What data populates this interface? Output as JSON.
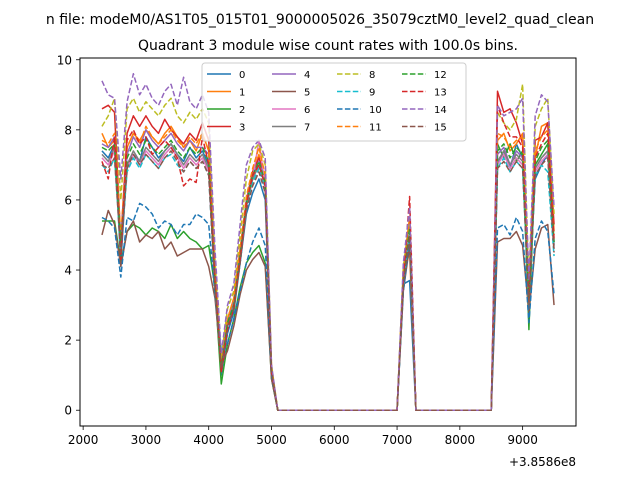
{
  "figure": {
    "suptitle": "n file: modeM0/AS1T05_015T01_9000005026_35079cztM0_level2_quad_clean",
    "offset_label": "+3.8586e8"
  },
  "chart_data": {
    "type": "line",
    "title": "Quadrant 3 module wise count rates with 100.0s bins.",
    "xlabel": "",
    "ylabel": "",
    "xlim": [
      1950,
      9850
    ],
    "ylim": [
      -0.45,
      10.05
    ],
    "x_ticks": [
      2000,
      3000,
      4000,
      5000,
      6000,
      7000,
      8000,
      9000
    ],
    "y_ticks": [
      0,
      2,
      4,
      6,
      8,
      10
    ],
    "grid": false,
    "legend_placement": "top-center",
    "legend_columns": 4,
    "x": [
      2300,
      2400,
      2500,
      2600,
      2700,
      2800,
      2900,
      3000,
      3100,
      3200,
      3300,
      3400,
      3500,
      3600,
      3700,
      3800,
      3900,
      4000,
      4100,
      4200,
      4300,
      4400,
      4500,
      4600,
      4700,
      4800,
      4900,
      5000,
      5100,
      5200,
      5300,
      5400,
      5500,
      5600,
      5700,
      5800,
      5900,
      6000,
      6100,
      6200,
      6300,
      6400,
      6500,
      6600,
      6700,
      6800,
      6900,
      7000,
      7100,
      7200,
      7300,
      7400,
      7500,
      7600,
      7700,
      7800,
      7900,
      8000,
      8100,
      8200,
      8300,
      8400,
      8500,
      8600,
      8700,
      8800,
      8900,
      9000,
      9100,
      9200,
      9300,
      9400,
      9500
    ],
    "series": [
      {
        "name": "0",
        "color": "#1f77b4",
        "style": "solid",
        "values": [
          7.4,
          7.2,
          7.6,
          4.2,
          7.0,
          7.3,
          7.1,
          7.8,
          7.5,
          7.2,
          7.4,
          7.6,
          7.3,
          7.1,
          7.5,
          7.2,
          7.4,
          7.0,
          3.5,
          1.0,
          2.2,
          2.8,
          4.2,
          5.6,
          6.2,
          6.6,
          6.0,
          1.0,
          0,
          0,
          0,
          0,
          0,
          0,
          0,
          0,
          0,
          0,
          0,
          0,
          0,
          0,
          0,
          0,
          0,
          0,
          0,
          0,
          3.6,
          3.7,
          0,
          0,
          0,
          0,
          0,
          0,
          0,
          0,
          0,
          0,
          0,
          0,
          0,
          7.0,
          7.4,
          6.9,
          7.6,
          7.2,
          3.2,
          6.6,
          7.0,
          7.3,
          4.8
        ]
      },
      {
        "name": "1",
        "color": "#ff7f0e",
        "style": "solid",
        "values": [
          7.9,
          7.5,
          7.7,
          4.5,
          7.5,
          7.9,
          7.7,
          8.0,
          7.8,
          7.6,
          7.9,
          8.1,
          7.8,
          7.5,
          7.7,
          7.4,
          7.9,
          7.4,
          3.8,
          1.3,
          2.6,
          3.2,
          4.6,
          6.0,
          6.8,
          7.3,
          6.4,
          1.2,
          0,
          0,
          0,
          0,
          0,
          0,
          0,
          0,
          0,
          0,
          0,
          0,
          0,
          0,
          0,
          0,
          0,
          0,
          0,
          0,
          3.9,
          4.5,
          0,
          0,
          0,
          0,
          0,
          0,
          0,
          0,
          0,
          0,
          0,
          0,
          0,
          7.7,
          7.9,
          7.4,
          7.6,
          7.9,
          3.5,
          7.2,
          8.1,
          8.2,
          5.1
        ]
      },
      {
        "name": "2",
        "color": "#2ca02c",
        "style": "solid",
        "values": [
          5.4,
          5.4,
          5.4,
          4.2,
          5.1,
          5.3,
          5.2,
          5.0,
          5.2,
          5.1,
          4.9,
          5.3,
          4.9,
          5.1,
          4.9,
          4.8,
          4.6,
          4.7,
          3.5,
          0.75,
          1.9,
          2.6,
          3.5,
          4.2,
          4.5,
          4.7,
          4.2,
          0.9,
          0,
          0,
          0,
          0,
          0,
          0,
          0,
          0,
          0,
          0,
          0,
          0,
          0,
          0,
          0,
          0,
          0,
          0,
          0,
          0,
          3.7,
          5.1,
          0,
          0,
          0,
          0,
          0,
          0,
          0,
          0,
          0,
          0,
          0,
          0,
          0,
          7.6,
          7.2,
          7.6,
          7.1,
          7.4,
          2.3,
          7.0,
          7.3,
          7.6,
          4.6
        ]
      },
      {
        "name": "3",
        "color": "#d62728",
        "style": "solid",
        "values": [
          8.6,
          8.7,
          8.5,
          4.8,
          7.9,
          8.4,
          8.1,
          8.4,
          8.1,
          7.9,
          8.3,
          8.0,
          7.8,
          7.6,
          7.9,
          7.7,
          8.2,
          7.7,
          4.0,
          1.1,
          2.4,
          3.0,
          4.4,
          6.0,
          6.8,
          7.2,
          6.6,
          1.1,
          0,
          0,
          0,
          0,
          0,
          0,
          0,
          0,
          0,
          0,
          0,
          0,
          0,
          0,
          0,
          0,
          0,
          0,
          0,
          0,
          3.8,
          5.3,
          0,
          0,
          0,
          0,
          0,
          0,
          0,
          0,
          0,
          0,
          0,
          0,
          0,
          9.1,
          8.5,
          8.6,
          8.2,
          7.6,
          3.1,
          7.7,
          7.8,
          8.2,
          5.3
        ]
      },
      {
        "name": "4",
        "color": "#9467bd",
        "style": "solid",
        "values": [
          7.6,
          7.5,
          7.8,
          4.8,
          7.3,
          7.8,
          7.5,
          8.0,
          7.7,
          7.5,
          7.7,
          7.9,
          7.6,
          7.4,
          7.7,
          7.5,
          7.5,
          7.3,
          3.7,
          1.2,
          2.5,
          3.1,
          4.5,
          6.0,
          6.7,
          7.1,
          6.5,
          1.1,
          0,
          0,
          0,
          0,
          0,
          0,
          0,
          0,
          0,
          0,
          0,
          0,
          0,
          0,
          0,
          0,
          0,
          0,
          0,
          0,
          3.8,
          4.9,
          0,
          0,
          0,
          0,
          0,
          0,
          0,
          0,
          0,
          0,
          0,
          0,
          0,
          7.3,
          7.5,
          7.0,
          7.4,
          7.2,
          3.0,
          6.9,
          7.2,
          7.4,
          4.7
        ]
      },
      {
        "name": "5",
        "color": "#8c564b",
        "style": "solid",
        "values": [
          5.0,
          5.7,
          5.3,
          4.1,
          5.1,
          5.4,
          4.8,
          5.0,
          4.9,
          5.1,
          4.6,
          4.8,
          4.4,
          4.5,
          4.6,
          4.6,
          4.6,
          4.1,
          3.2,
          1.3,
          1.7,
          2.4,
          3.3,
          4.0,
          4.3,
          4.5,
          4.1,
          0.9,
          0,
          0,
          0,
          0,
          0,
          0,
          0,
          0,
          0,
          0,
          0,
          0,
          0,
          0,
          0,
          0,
          0,
          0,
          0,
          0,
          3.4,
          4.7,
          0,
          0,
          0,
          0,
          0,
          0,
          0,
          0,
          0,
          0,
          0,
          0,
          0,
          4.8,
          4.9,
          4.9,
          5.1,
          4.7,
          2.8,
          4.6,
          5.2,
          5.3,
          3.0
        ]
      },
      {
        "name": "6",
        "color": "#e377c2",
        "style": "solid",
        "values": [
          7.2,
          7.0,
          7.4,
          4.6,
          6.9,
          7.3,
          7.0,
          7.4,
          7.2,
          7.0,
          7.3,
          7.5,
          7.2,
          6.9,
          7.2,
          7.0,
          7.2,
          6.8,
          3.5,
          1.2,
          2.4,
          3.0,
          4.3,
          5.8,
          6.6,
          7.7,
          6.4,
          1.1,
          0,
          0,
          0,
          0,
          0,
          0,
          0,
          0,
          0,
          0,
          0,
          0,
          0,
          0,
          0,
          0,
          0,
          0,
          0,
          0,
          3.6,
          5.4,
          0,
          0,
          0,
          0,
          0,
          0,
          0,
          0,
          0,
          0,
          0,
          0,
          0,
          7.0,
          7.3,
          6.9,
          7.2,
          7.0,
          3.0,
          6.8,
          7.1,
          7.3,
          4.6
        ]
      },
      {
        "name": "7",
        "color": "#7f7f7f",
        "style": "solid",
        "values": [
          7.3,
          7.1,
          7.5,
          4.7,
          7.0,
          7.4,
          7.1,
          7.5,
          7.3,
          7.1,
          7.4,
          7.6,
          7.3,
          7.0,
          7.3,
          7.1,
          7.3,
          6.9,
          3.6,
          1.2,
          2.4,
          3.0,
          4.3,
          5.8,
          6.6,
          7.0,
          6.4,
          1.1,
          0,
          0,
          0,
          0,
          0,
          0,
          0,
          0,
          0,
          0,
          0,
          0,
          0,
          0,
          0,
          0,
          0,
          0,
          0,
          0,
          3.7,
          5.0,
          0,
          0,
          0,
          0,
          0,
          0,
          0,
          0,
          0,
          0,
          0,
          0,
          0,
          7.1,
          7.4,
          7.0,
          7.3,
          7.1,
          3.1,
          6.9,
          7.2,
          7.4,
          4.7
        ]
      },
      {
        "name": "8",
        "color": "#bcbd22",
        "style": "dashed",
        "values": [
          8.1,
          8.4,
          8.9,
          6.0,
          8.6,
          8.9,
          8.5,
          8.8,
          8.6,
          8.4,
          8.7,
          8.9,
          8.4,
          8.2,
          8.5,
          8.3,
          8.6,
          8.2,
          4.3,
          1.5,
          2.9,
          3.4,
          5.0,
          6.6,
          7.4,
          7.6,
          7.0,
          1.3,
          0,
          0,
          0,
          0,
          0,
          0,
          0,
          0,
          0,
          0,
          0,
          0,
          0,
          0,
          0,
          0,
          0,
          0,
          0,
          0,
          4.1,
          5.5,
          0,
          0,
          0,
          0,
          0,
          0,
          0,
          0,
          0,
          0,
          0,
          0,
          0,
          8.5,
          8.2,
          8.0,
          8.3,
          9.3,
          3.6,
          8.1,
          8.6,
          8.9,
          5.6
        ]
      },
      {
        "name": "9",
        "color": "#17becf",
        "style": "dashed",
        "values": [
          7.0,
          6.8,
          7.2,
          4.5,
          6.8,
          7.2,
          6.9,
          7.3,
          7.1,
          6.9,
          7.2,
          7.3,
          7.0,
          6.8,
          7.1,
          6.9,
          7.1,
          6.7,
          3.4,
          1.2,
          2.4,
          2.9,
          4.2,
          5.7,
          6.5,
          6.9,
          6.3,
          1.1,
          0,
          0,
          0,
          0,
          0,
          0,
          0,
          0,
          0,
          0,
          0,
          0,
          0,
          0,
          0,
          0,
          0,
          0,
          0,
          0,
          3.5,
          5.2,
          0,
          0,
          0,
          0,
          0,
          0,
          0,
          0,
          0,
          0,
          0,
          0,
          0,
          6.9,
          7.2,
          6.8,
          7.1,
          6.9,
          3.0,
          6.7,
          7.0,
          6.8,
          4.4
        ]
      },
      {
        "name": "10",
        "color": "#1f77b4",
        "style": "dashed",
        "values": [
          5.5,
          5.4,
          5.2,
          3.8,
          5.5,
          5.4,
          5.9,
          5.8,
          5.6,
          5.2,
          5.4,
          5.3,
          5.0,
          5.3,
          5.3,
          5.6,
          5.5,
          5.3,
          3.3,
          1.7,
          1.9,
          2.6,
          3.4,
          4.2,
          4.8,
          5.2,
          4.7,
          1.0,
          0,
          0,
          0,
          0,
          0,
          0,
          0,
          0,
          0,
          0,
          0,
          0,
          0,
          0,
          0,
          0,
          0,
          0,
          0,
          0,
          3.4,
          4.9,
          0,
          0,
          0,
          0,
          0,
          0,
          0,
          0,
          0,
          0,
          0,
          0,
          0,
          5.2,
          5.3,
          5.0,
          5.5,
          5.1,
          2.5,
          4.9,
          5.4,
          5.1,
          3.3
        ]
      },
      {
        "name": "11",
        "color": "#ff7f0e",
        "style": "dashed",
        "values": [
          7.7,
          7.6,
          7.9,
          5.0,
          7.5,
          7.9,
          7.6,
          8.1,
          7.8,
          7.6,
          7.8,
          8.0,
          7.7,
          7.5,
          7.8,
          7.6,
          7.9,
          7.4,
          3.8,
          1.3,
          2.6,
          3.2,
          4.6,
          6.1,
          6.9,
          7.5,
          6.7,
          1.2,
          0,
          0,
          0,
          0,
          0,
          0,
          0,
          0,
          0,
          0,
          0,
          0,
          0,
          0,
          0,
          0,
          0,
          0,
          0,
          0,
          3.9,
          5.5,
          0,
          0,
          0,
          0,
          0,
          0,
          0,
          0,
          0,
          0,
          0,
          0,
          0,
          7.9,
          7.8,
          7.5,
          7.7,
          7.8,
          3.3,
          7.4,
          7.8,
          8.0,
          5.0
        ]
      },
      {
        "name": "12",
        "color": "#2ca02c",
        "style": "dashed",
        "values": [
          7.5,
          7.4,
          7.6,
          4.7,
          7.2,
          7.6,
          7.3,
          7.7,
          7.5,
          7.3,
          7.5,
          7.7,
          7.4,
          7.2,
          7.5,
          7.3,
          7.5,
          7.1,
          3.6,
          1.2,
          2.5,
          3.0,
          4.4,
          5.9,
          6.7,
          7.1,
          6.5,
          1.1,
          0,
          0,
          0,
          0,
          0,
          0,
          0,
          0,
          0,
          0,
          0,
          0,
          0,
          0,
          0,
          0,
          0,
          0,
          0,
          0,
          3.7,
          5.2,
          0,
          0,
          0,
          0,
          0,
          0,
          0,
          0,
          0,
          0,
          0,
          0,
          0,
          7.4,
          7.6,
          7.2,
          7.5,
          7.3,
          3.1,
          7.1,
          7.5,
          7.7,
          4.8
        ]
      },
      {
        "name": "13",
        "color": "#d62728",
        "style": "dashed",
        "values": [
          7.1,
          6.6,
          7.8,
          4.3,
          7.7,
          8.0,
          7.6,
          7.8,
          7.3,
          7.5,
          7.7,
          7.5,
          7.2,
          6.4,
          6.6,
          6.5,
          7.8,
          7.0,
          3.7,
          1.1,
          2.3,
          2.9,
          4.3,
          5.9,
          6.7,
          7.0,
          6.4,
          1.1,
          0,
          0,
          0,
          0,
          0,
          0,
          0,
          0,
          0,
          0,
          0,
          0,
          0,
          0,
          0,
          0,
          0,
          0,
          0,
          0,
          3.7,
          6.1,
          0,
          0,
          0,
          0,
          0,
          0,
          0,
          0,
          0,
          0,
          0,
          0,
          0,
          8.7,
          8.2,
          7.8,
          7.8,
          7.5,
          3.1,
          7.2,
          7.6,
          7.9,
          4.9
        ]
      },
      {
        "name": "14",
        "color": "#9467bd",
        "style": "dashed",
        "values": [
          9.4,
          9.0,
          8.9,
          6.6,
          8.8,
          9.6,
          9.0,
          9.3,
          8.9,
          8.7,
          9.1,
          9.3,
          8.7,
          9.5,
          8.8,
          8.6,
          9.0,
          8.5,
          4.6,
          1.6,
          3.0,
          3.6,
          5.3,
          7.0,
          7.5,
          7.7,
          7.2,
          1.3,
          0,
          0,
          0,
          0,
          0,
          0,
          0,
          0,
          0,
          0,
          0,
          0,
          0,
          0,
          0,
          0,
          0,
          0,
          0,
          0,
          4.2,
          5.8,
          0,
          0,
          0,
          0,
          0,
          0,
          0,
          0,
          0,
          0,
          0,
          0,
          0,
          8.7,
          8.4,
          8.5,
          8.6,
          8.9,
          3.7,
          8.4,
          9.0,
          8.8,
          5.8
        ]
      },
      {
        "name": "15",
        "color": "#8c564b",
        "style": "dashed",
        "values": [
          7.0,
          6.9,
          7.2,
          4.5,
          6.9,
          7.3,
          7.0,
          7.3,
          7.1,
          6.9,
          7.2,
          7.4,
          7.1,
          6.8,
          7.1,
          6.9,
          7.1,
          6.7,
          3.5,
          1.2,
          2.4,
          2.9,
          4.2,
          5.7,
          6.4,
          6.8,
          6.2,
          1.1,
          0,
          0,
          0,
          0,
          0,
          0,
          0,
          0,
          0,
          0,
          0,
          0,
          0,
          0,
          0,
          0,
          0,
          0,
          0,
          0,
          3.6,
          5.0,
          0,
          0,
          0,
          0,
          0,
          0,
          0,
          0,
          0,
          0,
          0,
          0,
          0,
          6.9,
          7.1,
          6.8,
          7.1,
          6.9,
          3.0,
          6.7,
          7.0,
          7.2,
          4.5
        ]
      }
    ]
  }
}
